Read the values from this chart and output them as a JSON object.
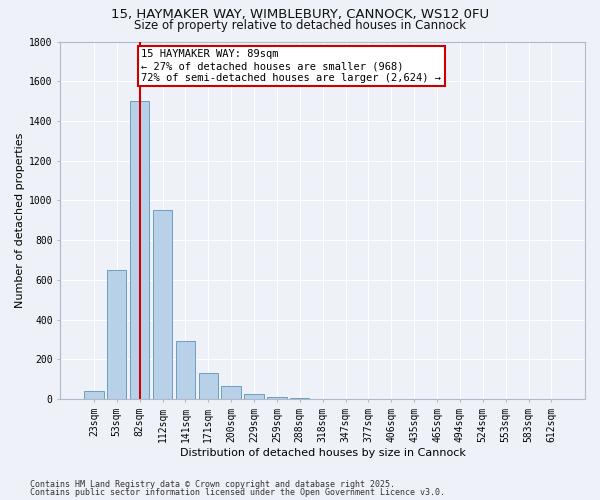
{
  "title1": "15, HAYMAKER WAY, WIMBLEBURY, CANNOCK, WS12 0FU",
  "title2": "Size of property relative to detached houses in Cannock",
  "xlabel": "Distribution of detached houses by size in Cannock",
  "ylabel": "Number of detached properties",
  "categories": [
    "23sqm",
    "53sqm",
    "82sqm",
    "112sqm",
    "141sqm",
    "171sqm",
    "200sqm",
    "229sqm",
    "259sqm",
    "288sqm",
    "318sqm",
    "347sqm",
    "377sqm",
    "406sqm",
    "435sqm",
    "465sqm",
    "494sqm",
    "524sqm",
    "553sqm",
    "583sqm",
    "612sqm"
  ],
  "values": [
    40,
    650,
    1500,
    950,
    290,
    130,
    65,
    25,
    10,
    5,
    2,
    1,
    0,
    0,
    0,
    0,
    0,
    0,
    0,
    0,
    0
  ],
  "bar_color": "#b8d0e8",
  "bar_edge_color": "#6a9ec0",
  "vline_x": 2,
  "vline_color": "#cc0000",
  "annotation_line1": "15 HAYMAKER WAY: 89sqm",
  "annotation_line2": "← 27% of detached houses are smaller (968)",
  "annotation_line3": "72% of semi-detached houses are larger (2,624) →",
  "annotation_box_color": "#cc0000",
  "annotation_fill": "#ffffff",
  "ylim": [
    0,
    1800
  ],
  "yticks": [
    0,
    200,
    400,
    600,
    800,
    1000,
    1200,
    1400,
    1600,
    1800
  ],
  "background_color": "#eef2f8",
  "grid_color": "#ffffff",
  "footer1": "Contains HM Land Registry data © Crown copyright and database right 2025.",
  "footer2": "Contains public sector information licensed under the Open Government Licence v3.0.",
  "title_fontsize": 9.5,
  "subtitle_fontsize": 8.5,
  "ylabel_fontsize": 8,
  "xlabel_fontsize": 8,
  "tick_fontsize": 7,
  "ann_fontsize": 7.5,
  "footer_fontsize": 6
}
